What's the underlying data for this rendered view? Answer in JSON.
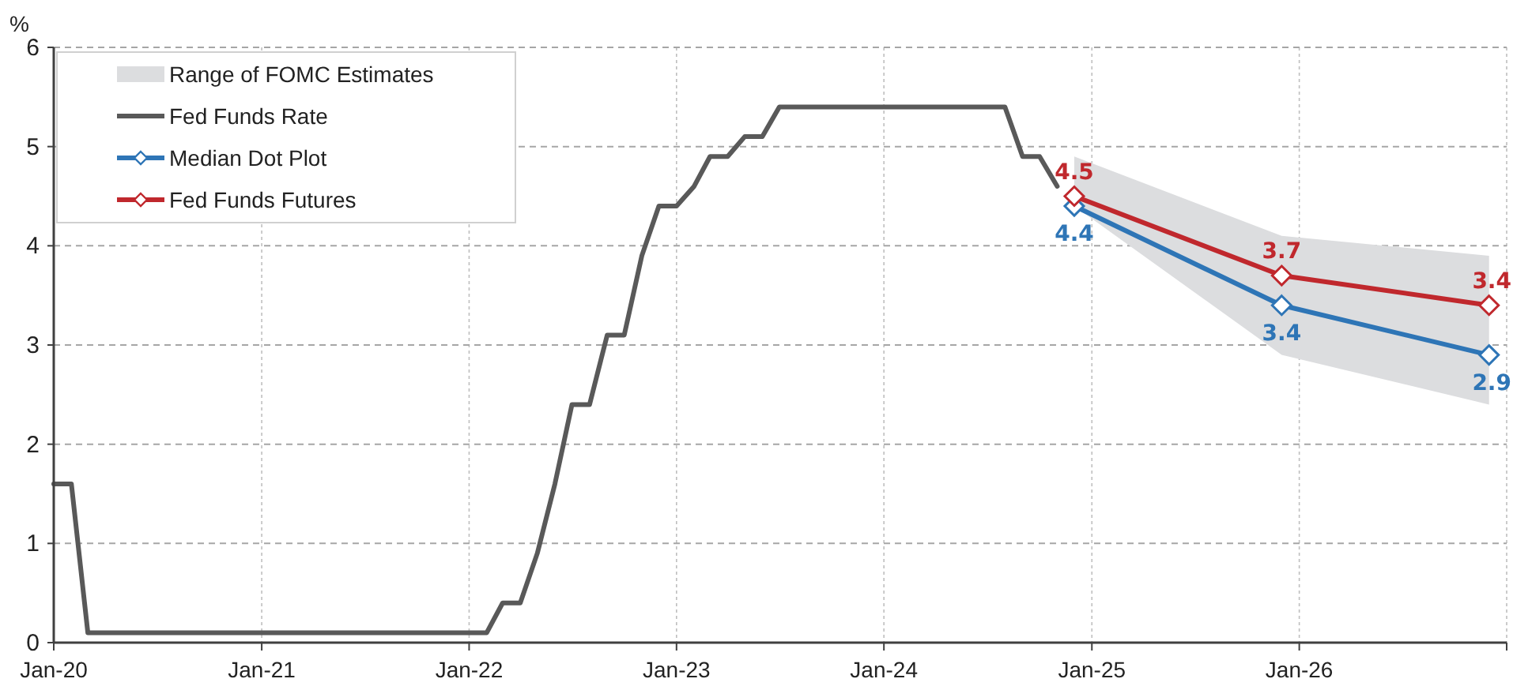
{
  "chart_data": {
    "type": "line",
    "ylabel": "%",
    "xlim": [
      "2020-01",
      "2027-01"
    ],
    "xticks": [
      {
        "value": "2020-01",
        "label": "Jan-20"
      },
      {
        "value": "2021-01",
        "label": "Jan-21"
      },
      {
        "value": "2022-01",
        "label": "Jan-22"
      },
      {
        "value": "2023-01",
        "label": "Jan-23"
      },
      {
        "value": "2024-01",
        "label": "Jan-24"
      },
      {
        "value": "2025-01",
        "label": "Jan-25"
      },
      {
        "value": "2026-01",
        "label": "Jan-26"
      },
      {
        "value": "2027-01",
        "label": null
      }
    ],
    "ylim": [
      0,
      6
    ],
    "yticks": [
      0,
      1,
      2,
      3,
      4,
      5,
      6
    ],
    "grid": true,
    "legend": "top left",
    "series": [
      {
        "name": "Range of FOMC Estimates",
        "type": "area",
        "color": "#dcdddf"
      },
      {
        "name": "Fed Funds Rate",
        "color": "#595959",
        "marker": "none",
        "x": [
          "2020-01",
          "2020-02",
          "2020-03",
          "2022-02",
          "2022-03",
          "2022-04",
          "2022-05",
          "2022-06",
          "2022-07",
          "2022-08",
          "2022-09",
          "2022-10",
          "2022-11",
          "2022-12",
          "2023-01",
          "2023-02",
          "2023-03",
          "2023-04",
          "2023-05",
          "2023-06",
          "2023-07",
          "2024-08",
          "2024-09",
          "2024-10",
          "2024-11"
        ],
        "values": [
          1.6,
          1.6,
          0.1,
          0.1,
          0.4,
          0.4,
          0.9,
          1.6,
          2.4,
          2.4,
          3.1,
          3.1,
          3.9,
          4.4,
          4.4,
          4.6,
          4.9,
          4.9,
          5.1,
          5.1,
          5.4,
          5.4,
          4.9,
          4.9,
          4.6
        ]
      },
      {
        "name": "Median Dot Plot",
        "color": "#2e75b6",
        "marker": "diamond",
        "x": [
          "2024-12",
          "2025-12",
          "2026-12"
        ],
        "values": [
          4.4,
          3.4,
          2.9
        ],
        "lower": [
          4.4,
          2.9,
          2.4
        ],
        "upper": [
          4.9,
          4.1,
          3.9
        ],
        "value_labels": [
          "4.4",
          "3.4",
          "2.9"
        ]
      },
      {
        "name": "Fed Funds Futures",
        "color": "#c0282d",
        "marker": "diamond",
        "x": [
          "2024-12",
          "2025-12",
          "2026-12"
        ],
        "values": [
          4.5,
          3.7,
          3.4
        ],
        "value_labels": [
          "4.5",
          "3.7",
          "3.4"
        ]
      }
    ]
  }
}
